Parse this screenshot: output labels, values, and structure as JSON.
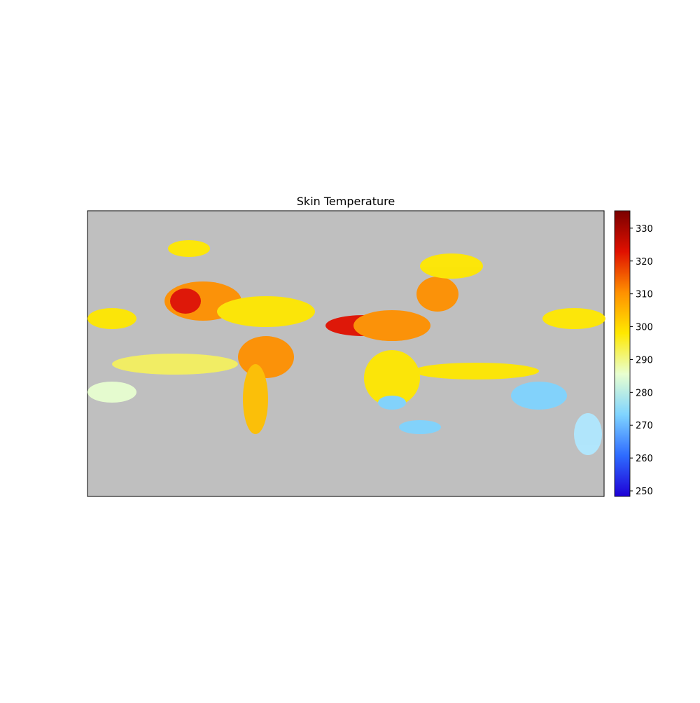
{
  "chart_data": {
    "type": "map",
    "title": "Skin Temperature",
    "colorbar": {
      "clim": [
        248.3,
        335.3
      ],
      "ticks": [
        250,
        260,
        270,
        280,
        290,
        300,
        310,
        320,
        330
      ],
      "colormap": [
        "#1e00d6",
        "#2e6bff",
        "#7fd4ff",
        "#e8ffd0",
        "#ffe800",
        "#ff9000",
        "#e01000",
        "#7a0000"
      ]
    },
    "background": "#bfbfbf"
  }
}
